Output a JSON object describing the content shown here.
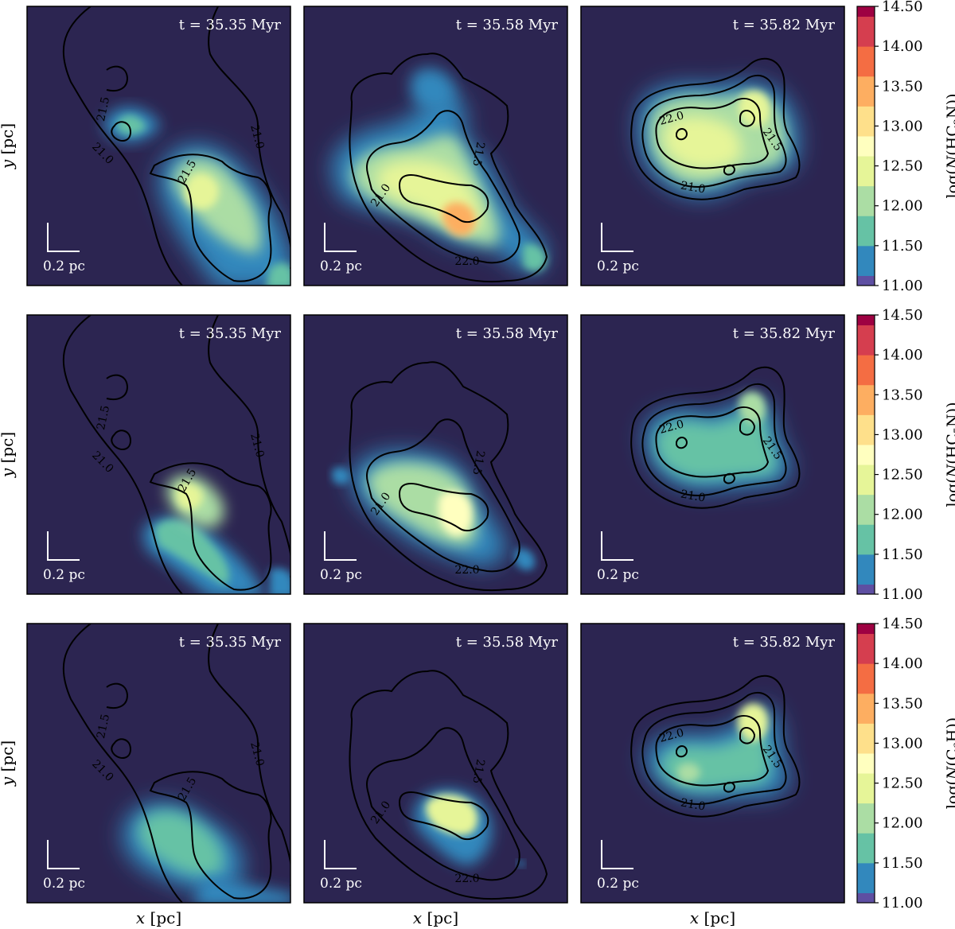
{
  "chart_data": {
    "type": "heatmap",
    "description_free": true,
    "columns": [
      {
        "time_label": "t = 35.35 Myr"
      },
      {
        "time_label": "t = 35.58 Myr"
      },
      {
        "time_label": "t = 35.82 Myr"
      }
    ],
    "rows": [
      {
        "colorbar_label": "log(N(HC3N))",
        "cb_main": "log(",
        "cb_n": "N",
        "cb_species_a": "(HC",
        "cb_sub": "3",
        "cb_species_b": "N))"
      },
      {
        "colorbar_label": "log(N(HC5N))",
        "cb_main": "log(",
        "cb_n": "N",
        "cb_species_a": "(HC",
        "cb_sub": "5",
        "cb_species_b": "N))"
      },
      {
        "colorbar_label": "log(N(C6H))",
        "cb_main": "log(",
        "cb_n": "N",
        "cb_species_a": "(C",
        "cb_sub": "6",
        "cb_species_b": "H))"
      }
    ],
    "xlabel": "x [pc]",
    "ylabel": "y [pc]",
    "scalebar_label": "0.2 pc",
    "colorbar": {
      "range": [
        11.0,
        14.5
      ],
      "ticks": [
        "11.00",
        "11.50",
        "12.00",
        "12.50",
        "13.00",
        "13.50",
        "14.00",
        "14.50"
      ],
      "colormap": "Spectral_r",
      "stops": [
        "#5e4fa2",
        "#3288bd",
        "#66c2a5",
        "#abdda4",
        "#e6f598",
        "#ffffbf",
        "#fee08b",
        "#fdae61",
        "#f46d43",
        "#d53e4f",
        "#9e0142"
      ]
    },
    "contour_labels": [
      "21.0",
      "21.5",
      "22.0"
    ],
    "background_color": "#2c2551"
  }
}
